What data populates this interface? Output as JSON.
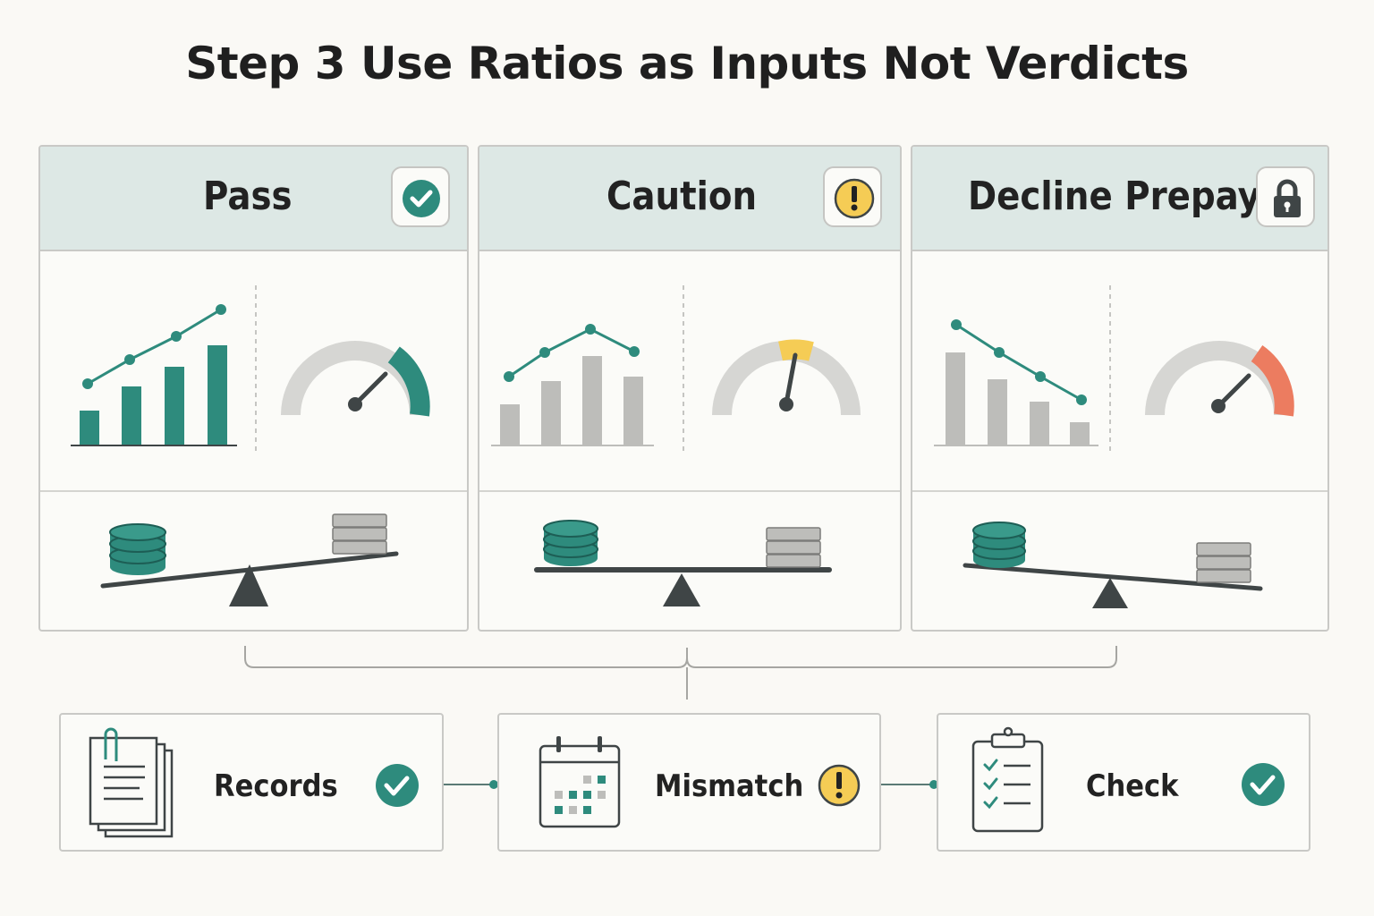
{
  "title": "Step 3 Use Ratios as Inputs Not Verdicts",
  "colors": {
    "teal": "#2e8b7d",
    "gray": "#bdbdba",
    "amber": "#f5cc55",
    "red": "#ec7c60",
    "dark": "#3f4546",
    "header_bg": "#dde8e5"
  },
  "panels": [
    {
      "title": "Pass",
      "status_icon": "check-circle-icon",
      "trend": "rising",
      "gauge_level": "high-teal",
      "balance": "tilt-left-heavy"
    },
    {
      "title": "Caution",
      "status_icon": "exclamation-circle-icon",
      "trend": "peak-then-dip",
      "gauge_level": "middle-amber",
      "balance": "level"
    },
    {
      "title": "Decline Prepay",
      "status_icon": "lock-icon",
      "trend": "falling",
      "gauge_level": "high-red",
      "balance": "tilt-right-heavy"
    }
  ],
  "steps": [
    {
      "label": "Records",
      "icon": "documents-icon",
      "status_icon": "check-circle-icon"
    },
    {
      "label": "Mismatch",
      "icon": "calendar-icon",
      "status_icon": "exclamation-circle-icon"
    },
    {
      "label": "Check",
      "icon": "clipboard-checklist-icon",
      "status_icon": "check-circle-icon"
    }
  ]
}
